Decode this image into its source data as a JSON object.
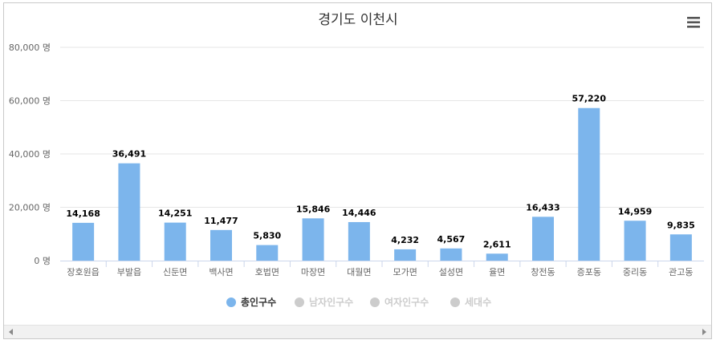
{
  "chart_data": {
    "type": "bar",
    "title": "경기도 이천시",
    "categories": [
      "장호원읍",
      "부발읍",
      "신둔면",
      "백사면",
      "호법면",
      "마장면",
      "대월면",
      "모가면",
      "설성면",
      "율면",
      "창전동",
      "증포동",
      "중리동",
      "관고동"
    ],
    "series": [
      {
        "name": "총인구수",
        "values": [
          14168,
          36491,
          14251,
          11477,
          5830,
          15846,
          14446,
          4232,
          4567,
          2611,
          16433,
          57220,
          14959,
          9835
        ],
        "color": "#7cb5ec",
        "active": true
      },
      {
        "name": "남자인구수",
        "active": false
      },
      {
        "name": "여자인구수",
        "active": false
      },
      {
        "name": "세대수",
        "active": false
      }
    ],
    "data_labels": [
      "14,168",
      "36,491",
      "14,251",
      "11,477",
      "5,830",
      "15,846",
      "14,446",
      "4,232",
      "4,567",
      "2,611",
      "16,433",
      "57,220",
      "14,959",
      "9,835"
    ],
    "y_ticks": [
      "0 명",
      "20,000 명",
      "40,000 명",
      "60,000 명",
      "80,000 명"
    ],
    "ylim": [
      0,
      80000
    ],
    "grid": true,
    "legend_position": "bottom-center",
    "colors": {
      "bar": "#7cb5ec",
      "legend_inactive": "#cccccc",
      "grid": "#e6e6e6",
      "axis": "#ccd6eb"
    }
  },
  "ui": {
    "menu_icon": "hamburger-menu-icon",
    "scroll_left_icon": "scroll-left-arrow-icon",
    "scroll_right_icon": "scroll-right-arrow-icon"
  }
}
